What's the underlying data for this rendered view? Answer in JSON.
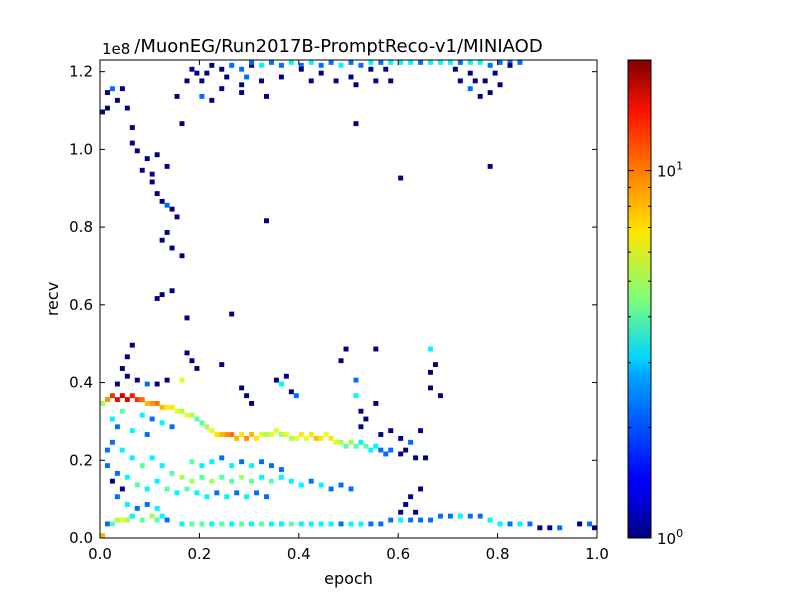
{
  "chart_data": {
    "type": "heatmap",
    "title": "/MuonEG/Run2017B-PromptReco-v1/MINIAOD",
    "xlabel": "epoch",
    "ylabel": "recv",
    "xlim": [
      0.0,
      1.0
    ],
    "ylim": [
      0.0,
      1.23
    ],
    "y_scale_note": "1e8",
    "x_ticks": [
      "0.0",
      "0.2",
      "0.4",
      "0.6",
      "0.8",
      "1.0"
    ],
    "y_ticks": [
      "0.0",
      "0.2",
      "0.4",
      "0.6",
      "0.8",
      "1.0",
      "1.2"
    ],
    "colorbar": {
      "scale": "log",
      "colormap": "jet",
      "range": [
        1,
        20
      ],
      "tick_labels": [
        {
          "base": "10",
          "exp": "0",
          "value": 1
        },
        {
          "base": "10",
          "exp": "1",
          "value": 10
        }
      ]
    },
    "cells": [
      [
        0.0,
        0.0,
        8
      ],
      [
        0.01,
        0.03,
        2
      ],
      [
        0.02,
        0.03,
        4
      ],
      [
        0.03,
        0.04,
        5
      ],
      [
        0.04,
        0.04,
        6
      ],
      [
        0.05,
        0.04,
        5
      ],
      [
        0.06,
        0.05,
        3
      ],
      [
        0.08,
        0.04,
        4
      ],
      [
        0.1,
        0.05,
        5
      ],
      [
        0.11,
        0.04,
        4
      ],
      [
        0.12,
        0.05,
        3
      ],
      [
        0.13,
        0.04,
        2
      ],
      [
        0.16,
        0.03,
        3
      ],
      [
        0.18,
        0.03,
        4
      ],
      [
        0.2,
        0.03,
        4
      ],
      [
        0.22,
        0.03,
        3
      ],
      [
        0.24,
        0.03,
        4
      ],
      [
        0.26,
        0.03,
        3
      ],
      [
        0.28,
        0.03,
        4
      ],
      [
        0.3,
        0.03,
        3
      ],
      [
        0.32,
        0.03,
        4
      ],
      [
        0.34,
        0.03,
        3
      ],
      [
        0.36,
        0.03,
        3
      ],
      [
        0.38,
        0.03,
        4
      ],
      [
        0.4,
        0.03,
        3
      ],
      [
        0.42,
        0.03,
        3
      ],
      [
        0.44,
        0.03,
        3
      ],
      [
        0.46,
        0.03,
        3
      ],
      [
        0.48,
        0.03,
        2
      ],
      [
        0.5,
        0.03,
        3
      ],
      [
        0.52,
        0.03,
        3
      ],
      [
        0.54,
        0.03,
        2
      ],
      [
        0.56,
        0.03,
        2
      ],
      [
        0.58,
        0.04,
        2
      ],
      [
        0.6,
        0.04,
        3
      ],
      [
        0.62,
        0.04,
        2
      ],
      [
        0.64,
        0.04,
        2
      ],
      [
        0.66,
        0.04,
        2
      ],
      [
        0.68,
        0.05,
        2
      ],
      [
        0.7,
        0.05,
        2
      ],
      [
        0.72,
        0.05,
        3
      ],
      [
        0.74,
        0.05,
        2
      ],
      [
        0.76,
        0.05,
        2
      ],
      [
        0.78,
        0.04,
        3
      ],
      [
        0.8,
        0.03,
        3
      ],
      [
        0.82,
        0.03,
        2
      ],
      [
        0.84,
        0.03,
        3
      ],
      [
        0.86,
        0.03,
        2
      ],
      [
        0.88,
        0.02,
        1
      ],
      [
        0.9,
        0.02,
        1
      ],
      [
        0.92,
        0.02,
        2
      ],
      [
        0.96,
        0.03,
        1
      ],
      [
        0.98,
        0.03,
        2
      ],
      [
        0.99,
        0.02,
        1
      ],
      [
        0.0,
        0.34,
        5
      ],
      [
        0.01,
        0.35,
        9
      ],
      [
        0.02,
        0.36,
        12
      ],
      [
        0.03,
        0.35,
        14
      ],
      [
        0.04,
        0.36,
        16
      ],
      [
        0.05,
        0.35,
        15
      ],
      [
        0.06,
        0.36,
        13
      ],
      [
        0.07,
        0.35,
        12
      ],
      [
        0.08,
        0.35,
        10
      ],
      [
        0.09,
        0.34,
        8
      ],
      [
        0.1,
        0.34,
        9
      ],
      [
        0.11,
        0.34,
        10
      ],
      [
        0.12,
        0.33,
        8
      ],
      [
        0.13,
        0.33,
        7
      ],
      [
        0.14,
        0.33,
        7
      ],
      [
        0.15,
        0.32,
        6
      ],
      [
        0.16,
        0.32,
        5
      ],
      [
        0.17,
        0.31,
        6
      ],
      [
        0.18,
        0.31,
        5
      ],
      [
        0.19,
        0.3,
        4
      ],
      [
        0.2,
        0.29,
        4
      ],
      [
        0.21,
        0.28,
        5
      ],
      [
        0.22,
        0.27,
        6
      ],
      [
        0.23,
        0.26,
        7
      ],
      [
        0.24,
        0.26,
        8
      ],
      [
        0.25,
        0.26,
        9
      ],
      [
        0.26,
        0.26,
        10
      ],
      [
        0.27,
        0.25,
        8
      ],
      [
        0.28,
        0.26,
        7
      ],
      [
        0.29,
        0.25,
        9
      ],
      [
        0.3,
        0.26,
        8
      ],
      [
        0.31,
        0.25,
        7
      ],
      [
        0.32,
        0.26,
        6
      ],
      [
        0.33,
        0.26,
        5
      ],
      [
        0.34,
        0.26,
        6
      ],
      [
        0.35,
        0.27,
        6
      ],
      [
        0.36,
        0.26,
        5
      ],
      [
        0.37,
        0.26,
        6
      ],
      [
        0.38,
        0.25,
        5
      ],
      [
        0.39,
        0.25,
        6
      ],
      [
        0.4,
        0.26,
        7
      ],
      [
        0.41,
        0.25,
        6
      ],
      [
        0.42,
        0.26,
        7
      ],
      [
        0.43,
        0.25,
        8
      ],
      [
        0.44,
        0.25,
        7
      ],
      [
        0.45,
        0.26,
        6
      ],
      [
        0.46,
        0.25,
        7
      ],
      [
        0.47,
        0.24,
        6
      ],
      [
        0.48,
        0.24,
        5
      ],
      [
        0.49,
        0.23,
        4
      ],
      [
        0.5,
        0.24,
        5
      ],
      [
        0.51,
        0.23,
        4
      ],
      [
        0.52,
        0.24,
        3
      ],
      [
        0.53,
        0.23,
        4
      ],
      [
        0.54,
        0.22,
        3
      ],
      [
        0.55,
        0.23,
        3
      ],
      [
        0.56,
        0.22,
        2
      ],
      [
        0.57,
        0.21,
        2
      ],
      [
        0.58,
        0.22,
        2
      ],
      [
        0.6,
        0.21,
        1
      ],
      [
        0.02,
        0.3,
        3
      ],
      [
        0.04,
        0.32,
        4
      ],
      [
        0.08,
        0.31,
        3
      ],
      [
        0.1,
        0.3,
        2
      ],
      [
        0.12,
        0.29,
        3
      ],
      [
        0.14,
        0.28,
        2
      ],
      [
        0.16,
        0.4,
        6
      ],
      [
        0.03,
        0.28,
        2
      ],
      [
        0.06,
        0.27,
        3
      ],
      [
        0.09,
        0.26,
        2
      ],
      [
        0.02,
        0.24,
        2
      ],
      [
        0.04,
        0.22,
        3
      ],
      [
        0.06,
        0.2,
        3
      ],
      [
        0.08,
        0.18,
        4
      ],
      [
        0.1,
        0.2,
        3
      ],
      [
        0.12,
        0.18,
        3
      ],
      [
        0.14,
        0.16,
        4
      ],
      [
        0.16,
        0.15,
        5
      ],
      [
        0.18,
        0.14,
        5
      ],
      [
        0.2,
        0.15,
        4
      ],
      [
        0.22,
        0.14,
        5
      ],
      [
        0.24,
        0.15,
        4
      ],
      [
        0.26,
        0.14,
        4
      ],
      [
        0.28,
        0.15,
        5
      ],
      [
        0.3,
        0.14,
        4
      ],
      [
        0.32,
        0.15,
        3
      ],
      [
        0.34,
        0.14,
        4
      ],
      [
        0.36,
        0.15,
        3
      ],
      [
        0.38,
        0.14,
        3
      ],
      [
        0.4,
        0.13,
        3
      ],
      [
        0.42,
        0.14,
        2
      ],
      [
        0.44,
        0.13,
        3
      ],
      [
        0.46,
        0.12,
        2
      ],
      [
        0.48,
        0.13,
        2
      ],
      [
        0.5,
        0.12,
        2
      ],
      [
        0.05,
        0.15,
        3
      ],
      [
        0.07,
        0.13,
        4
      ],
      [
        0.09,
        0.12,
        3
      ],
      [
        0.11,
        0.14,
        3
      ],
      [
        0.13,
        0.12,
        4
      ],
      [
        0.15,
        0.11,
        3
      ],
      [
        0.17,
        0.12,
        4
      ],
      [
        0.19,
        0.11,
        3
      ],
      [
        0.21,
        0.1,
        3
      ],
      [
        0.23,
        0.11,
        2
      ],
      [
        0.25,
        0.1,
        3
      ],
      [
        0.27,
        0.11,
        2
      ],
      [
        0.29,
        0.1,
        3
      ],
      [
        0.31,
        0.11,
        2
      ],
      [
        0.33,
        0.1,
        2
      ],
      [
        0.03,
        0.1,
        2
      ],
      [
        0.05,
        0.08,
        3
      ],
      [
        0.07,
        0.07,
        2
      ],
      [
        0.09,
        0.08,
        2
      ],
      [
        0.11,
        0.07,
        3
      ],
      [
        0.18,
        0.19,
        4
      ],
      [
        0.2,
        0.18,
        3
      ],
      [
        0.22,
        0.19,
        3
      ],
      [
        0.24,
        0.2,
        2
      ],
      [
        0.26,
        0.18,
        3
      ],
      [
        0.28,
        0.19,
        2
      ],
      [
        0.3,
        0.18,
        3
      ],
      [
        0.32,
        0.19,
        2
      ],
      [
        0.34,
        0.18,
        2
      ],
      [
        0.36,
        0.17,
        2
      ],
      [
        0.01,
        0.18,
        2
      ],
      [
        0.01,
        0.22,
        2
      ],
      [
        0.02,
        0.14,
        1
      ],
      [
        0.03,
        0.16,
        2
      ],
      [
        0.04,
        0.12,
        1
      ],
      [
        0.6,
        0.06,
        1
      ],
      [
        0.61,
        0.08,
        1
      ],
      [
        0.62,
        0.1,
        1
      ],
      [
        0.63,
        0.06,
        1
      ],
      [
        0.64,
        0.12,
        1
      ],
      [
        0.65,
        0.2,
        1
      ],
      [
        0.66,
        0.38,
        1
      ],
      [
        0.66,
        0.42,
        1
      ],
      [
        0.67,
        0.44,
        1
      ],
      [
        0.66,
        0.48,
        3
      ],
      [
        0.68,
        0.36,
        1
      ],
      [
        0.55,
        0.48,
        1
      ],
      [
        0.49,
        0.48,
        1
      ],
      [
        0.48,
        0.45,
        1
      ],
      [
        0.51,
        0.4,
        2
      ],
      [
        0.51,
        0.36,
        3
      ],
      [
        0.52,
        0.32,
        1
      ],
      [
        0.53,
        0.3,
        1
      ],
      [
        0.55,
        0.34,
        1
      ],
      [
        0.52,
        0.28,
        1
      ],
      [
        0.56,
        0.26,
        1
      ],
      [
        0.58,
        0.27,
        1
      ],
      [
        0.6,
        0.25,
        1
      ],
      [
        0.61,
        0.22,
        1
      ],
      [
        0.62,
        0.24,
        2
      ],
      [
        0.63,
        0.2,
        1
      ],
      [
        0.64,
        0.27,
        1
      ],
      [
        0.35,
        0.4,
        1
      ],
      [
        0.36,
        0.39,
        3
      ],
      [
        0.37,
        0.41,
        1
      ],
      [
        0.38,
        0.37,
        1
      ],
      [
        0.39,
        0.36,
        2
      ],
      [
        0.28,
        0.38,
        1
      ],
      [
        0.29,
        0.36,
        1
      ],
      [
        0.3,
        0.34,
        1
      ],
      [
        0.17,
        0.47,
        1
      ],
      [
        0.18,
        0.45,
        1
      ],
      [
        0.19,
        0.43,
        1
      ],
      [
        0.24,
        0.44,
        1
      ],
      [
        0.06,
        0.49,
        1
      ],
      [
        0.05,
        0.46,
        1
      ],
      [
        0.04,
        0.43,
        1
      ],
      [
        0.05,
        0.41,
        1
      ],
      [
        0.07,
        0.4,
        1
      ],
      [
        0.09,
        0.39,
        2
      ],
      [
        0.11,
        0.39,
        1
      ],
      [
        0.13,
        0.4,
        1
      ],
      [
        0.03,
        0.39,
        1
      ],
      [
        0.01,
        1.14,
        1
      ],
      [
        0.02,
        1.15,
        2
      ],
      [
        0.01,
        1.1,
        1
      ],
      [
        0.03,
        1.12,
        1
      ],
      [
        0.04,
        1.15,
        1
      ],
      [
        0.0,
        1.09,
        1
      ],
      [
        0.05,
        1.1,
        1
      ],
      [
        0.06,
        1.05,
        1
      ],
      [
        0.06,
        1.01,
        1
      ],
      [
        0.07,
        0.99,
        1
      ],
      [
        0.09,
        0.97,
        1
      ],
      [
        0.08,
        0.94,
        1
      ],
      [
        0.1,
        0.93,
        1
      ],
      [
        0.11,
        0.98,
        1
      ],
      [
        0.13,
        0.95,
        1
      ],
      [
        0.1,
        0.91,
        1
      ],
      [
        0.11,
        0.88,
        1
      ],
      [
        0.12,
        0.86,
        1
      ],
      [
        0.13,
        0.85,
        2
      ],
      [
        0.14,
        0.84,
        1
      ],
      [
        0.15,
        0.82,
        1
      ],
      [
        0.13,
        0.78,
        1
      ],
      [
        0.12,
        0.76,
        1
      ],
      [
        0.14,
        0.74,
        1
      ],
      [
        0.16,
        0.72,
        1
      ],
      [
        0.12,
        0.62,
        1
      ],
      [
        0.11,
        0.61,
        1
      ],
      [
        0.14,
        0.63,
        1
      ],
      [
        0.17,
        0.56,
        1
      ],
      [
        0.26,
        0.57,
        1
      ],
      [
        0.33,
        0.81,
        1
      ],
      [
        0.28,
        1.16,
        1
      ],
      [
        0.3,
        1.21,
        1
      ],
      [
        0.18,
        1.2,
        1
      ],
      [
        0.17,
        1.17,
        1
      ],
      [
        0.16,
        1.06,
        1
      ],
      [
        0.15,
        1.13,
        1
      ],
      [
        0.2,
        1.13,
        2
      ],
      [
        0.21,
        1.19,
        1
      ],
      [
        0.22,
        1.21,
        1
      ],
      [
        0.24,
        1.2,
        1
      ],
      [
        0.26,
        1.21,
        2
      ],
      [
        0.28,
        1.2,
        2
      ],
      [
        0.3,
        1.22,
        2
      ],
      [
        0.32,
        1.21,
        3
      ],
      [
        0.34,
        1.22,
        2
      ],
      [
        0.36,
        1.21,
        2
      ],
      [
        0.38,
        1.22,
        3
      ],
      [
        0.4,
        1.21,
        2
      ],
      [
        0.42,
        1.22,
        3
      ],
      [
        0.44,
        1.21,
        2
      ],
      [
        0.46,
        1.22,
        2
      ],
      [
        0.48,
        1.21,
        3
      ],
      [
        0.5,
        1.22,
        2
      ],
      [
        0.52,
        1.21,
        2
      ],
      [
        0.54,
        1.22,
        3
      ],
      [
        0.56,
        1.22,
        2
      ],
      [
        0.58,
        1.22,
        3
      ],
      [
        0.6,
        1.22,
        3
      ],
      [
        0.62,
        1.22,
        3
      ],
      [
        0.64,
        1.22,
        2
      ],
      [
        0.66,
        1.22,
        3
      ],
      [
        0.68,
        1.22,
        3
      ],
      [
        0.7,
        1.22,
        3
      ],
      [
        0.72,
        1.22,
        2
      ],
      [
        0.74,
        1.22,
        3
      ],
      [
        0.76,
        1.22,
        3
      ],
      [
        0.78,
        1.21,
        2
      ],
      [
        0.8,
        1.22,
        2
      ],
      [
        0.82,
        1.22,
        2
      ],
      [
        0.84,
        1.22,
        2
      ],
      [
        0.24,
        1.15,
        1
      ],
      [
        0.22,
        1.12,
        1
      ],
      [
        0.28,
        1.14,
        1
      ],
      [
        0.33,
        1.13,
        1
      ],
      [
        0.36,
        1.18,
        1
      ],
      [
        0.4,
        1.2,
        1
      ],
      [
        0.42,
        1.17,
        1
      ],
      [
        0.44,
        1.19,
        1
      ],
      [
        0.47,
        1.17,
        1
      ],
      [
        0.5,
        1.18,
        1
      ],
      [
        0.51,
        1.16,
        1
      ],
      [
        0.54,
        1.2,
        1
      ],
      [
        0.55,
        1.17,
        1
      ],
      [
        0.57,
        1.2,
        1
      ],
      [
        0.58,
        1.17,
        1
      ],
      [
        0.71,
        1.2,
        1
      ],
      [
        0.74,
        1.19,
        1
      ],
      [
        0.75,
        1.17,
        1
      ],
      [
        0.77,
        1.17,
        1
      ],
      [
        0.78,
        1.14,
        1
      ],
      [
        0.79,
        1.19,
        1
      ],
      [
        0.8,
        1.16,
        1
      ],
      [
        0.82,
        1.21,
        1
      ],
      [
        0.72,
        1.17,
        1
      ],
      [
        0.74,
        1.15,
        2
      ],
      [
        0.76,
        1.13,
        1
      ],
      [
        0.51,
        1.06,
        1
      ],
      [
        0.6,
        0.92,
        1
      ],
      [
        0.78,
        0.95,
        1
      ],
      [
        0.29,
        1.18,
        2
      ],
      [
        0.32,
        1.17,
        1
      ],
      [
        0.2,
        1.17,
        1
      ],
      [
        0.19,
        1.19,
        1
      ],
      [
        0.25,
        1.18,
        1
      ]
    ]
  }
}
